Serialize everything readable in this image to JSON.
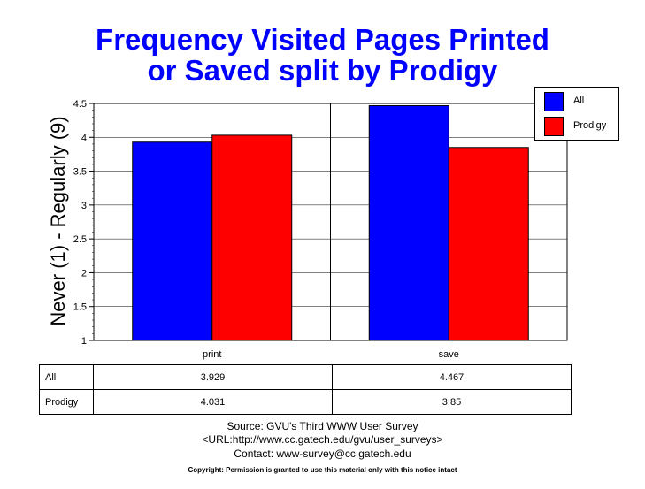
{
  "title_line1": "Frequency Visited Pages Printed",
  "title_line2": "or Saved split by Prodigy",
  "colors": {
    "title": "#0000ff",
    "all": "#0000ff",
    "prodigy": "#ff0000"
  },
  "chart_data": {
    "type": "bar",
    "title": "Frequency Visited Pages Printed or Saved split by Prodigy",
    "xlabel": "",
    "ylabel": "Never (1) - Regularly (9)",
    "ylim": [
      1,
      4.5
    ],
    "yticks": [
      "1",
      "1.5",
      "2",
      "2.5",
      "3",
      "3.5",
      "4",
      "4.5"
    ],
    "categories": [
      "print",
      "save"
    ],
    "series": [
      {
        "name": "All",
        "values": [
          3.929,
          4.467
        ],
        "labels": [
          "3.929",
          "4.467"
        ]
      },
      {
        "name": "Prodigy",
        "values": [
          4.031,
          3.85
        ],
        "labels": [
          "4.031",
          "3.85"
        ]
      }
    ],
    "grid": true,
    "legend": "top-right"
  },
  "footer": {
    "source": "Source: GVU's Third WWW User Survey",
    "url": "<URL:http://www.cc.gatech.edu/gvu/user_surveys>",
    "contact": "Contact: www-survey@cc.gatech.edu",
    "copyright": "Copyright: Permission is granted to use this material only with this notice intact"
  }
}
